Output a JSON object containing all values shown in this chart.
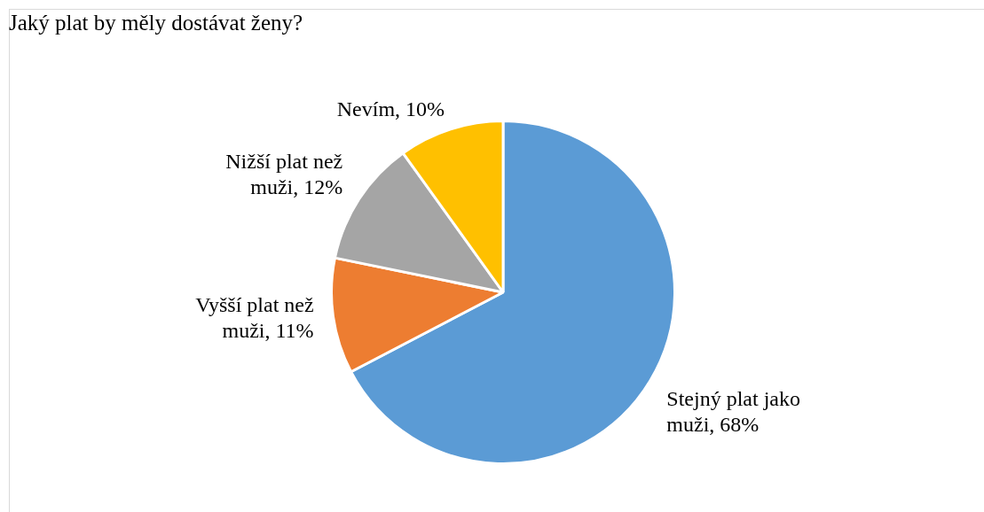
{
  "chart_data": {
    "type": "pie",
    "title": "Jaký plat by měly dostávat ženy?",
    "categories": [
      "Stejný plat jako muži",
      "Vyšší plat než muži",
      "Nižší plat než muži",
      "Nevím"
    ],
    "values": [
      68,
      11,
      12,
      10
    ],
    "colors": [
      "#5b9bd5",
      "#ed7d31",
      "#a5a5a5",
      "#ffc000"
    ],
    "value_labels": [
      "68%",
      "11%",
      "12%",
      "10%"
    ],
    "legend": false
  }
}
